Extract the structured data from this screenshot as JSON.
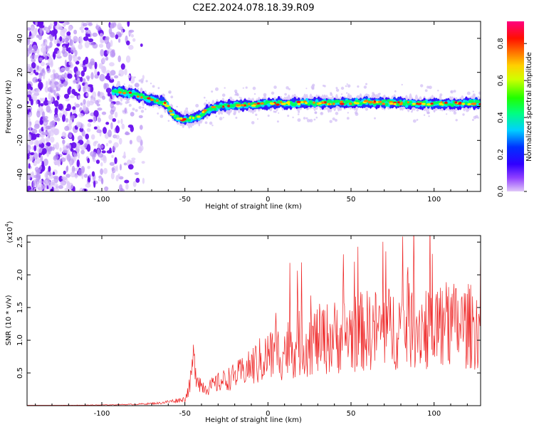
{
  "title": "C2E2.2024.078.18.39.R09",
  "colors": {
    "spectrum_scheme": [
      "#e0c8f8",
      "#7000ff",
      "#0000ff",
      "#00e8ff",
      "#00ff00",
      "#ffff00",
      "#ff8000",
      "#ff0000",
      "#ff0080"
    ],
    "snr_line": "#ee2222"
  },
  "chart_data": [
    {
      "id": "spectrogram",
      "type": "heatmap",
      "xlabel": "Height of straight line (km)",
      "ylabel": "Frequency (Hz)",
      "xlim": [
        -145,
        128
      ],
      "ylim": [
        -50,
        50
      ],
      "x_ticks": [
        -100,
        -50,
        0,
        50,
        100
      ],
      "y_ticks": [
        -40,
        -20,
        0,
        20,
        40
      ],
      "colorbar": {
        "label": "Normalized spectral amplitude",
        "range": [
          0,
          0.92
        ],
        "ticks": [
          0.0,
          0.2,
          0.4,
          0.6,
          0.8
        ]
      },
      "ridge": {
        "x": [
          -92,
          -80,
          -70,
          -62,
          -57,
          -52,
          -46,
          -41,
          -38,
          -30,
          -20,
          -10,
          0,
          20,
          40,
          60,
          80,
          100,
          128
        ],
        "freq": [
          9,
          7,
          4,
          2,
          -5,
          -8,
          -7,
          -6,
          -3,
          0,
          0.5,
          1,
          1.5,
          2,
          2,
          2.5,
          2,
          1.5,
          2
        ]
      },
      "noise_region_x": [
        -145,
        -72
      ]
    },
    {
      "id": "snr",
      "type": "line",
      "xlabel": "Height of straight line (km)",
      "ylabel": "SNR (10 * v/v)",
      "multiplier": "(x10^4)",
      "xlim": [
        -145,
        128
      ],
      "ylim": [
        0,
        2.6
      ],
      "x_ticks": [
        -100,
        -50,
        0,
        50,
        100
      ],
      "y_ticks": [
        0.5,
        1.0,
        1.5,
        2.0,
        2.5
      ],
      "envelope": {
        "x": [
          -145,
          -100,
          -80,
          -65,
          -60,
          -55,
          -50,
          -47,
          -45,
          -43,
          -40,
          -35,
          -30,
          -20,
          -10,
          0,
          10,
          20,
          40,
          60,
          80,
          100,
          128
        ],
        "y": [
          0.0,
          0.01,
          0.02,
          0.04,
          0.06,
          0.08,
          0.1,
          0.3,
          0.7,
          0.5,
          0.3,
          0.28,
          0.35,
          0.45,
          0.6,
          0.75,
          0.85,
          0.95,
          1.05,
          1.15,
          1.2,
          1.25,
          1.2
        ]
      }
    }
  ]
}
